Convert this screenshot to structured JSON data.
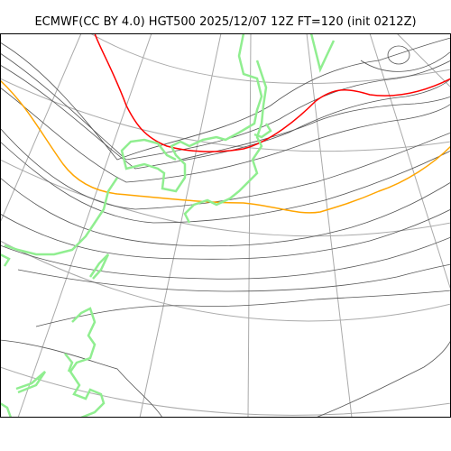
{
  "header": {
    "title": "ECMWF(CC BY 4.0) HGT500 2025/12/07 12Z FT=120 (init 0212Z)"
  },
  "map": {
    "colors": {
      "background": "#ffffff",
      "frame": "#000000",
      "graticule": "#aaaaaa",
      "contour": "#555555",
      "contour_5400": "#ffa500",
      "contour_5700": "#ff0000",
      "coastline": "#90ee90"
    },
    "layers": [
      "graticule",
      "height-contours",
      "coastline"
    ]
  }
}
